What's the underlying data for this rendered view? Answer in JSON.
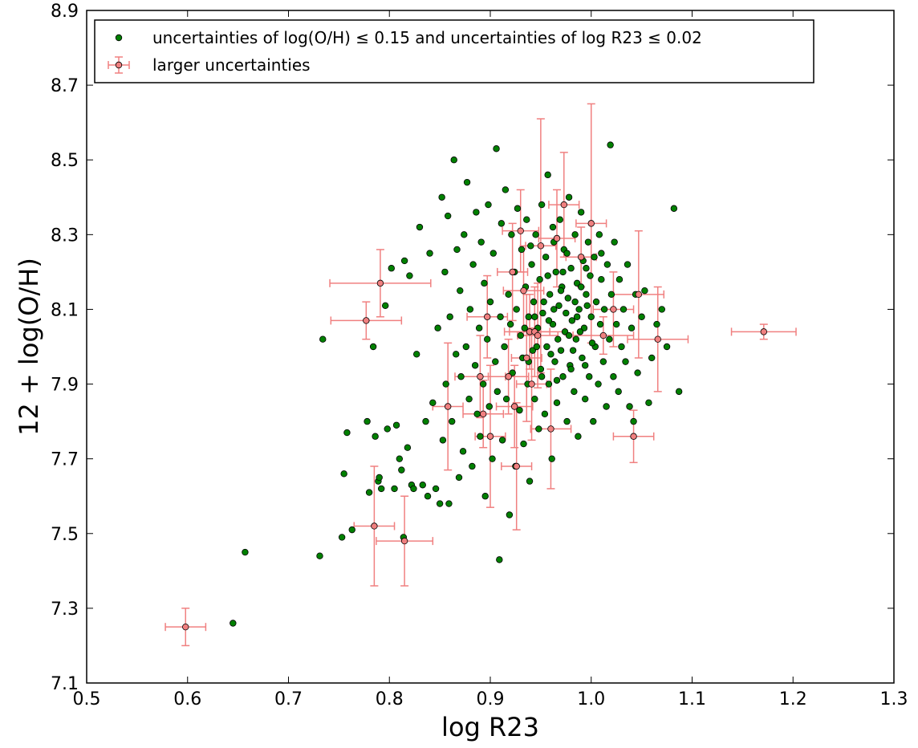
{
  "chart_data": {
    "type": "scatter",
    "title": "",
    "xlabel": "log R23",
    "ylabel": "12 + log(O/H)",
    "xlim": [
      0.5,
      1.3
    ],
    "ylim": [
      7.1,
      8.9
    ],
    "xticks": [
      0.5,
      0.6,
      0.7,
      0.8,
      0.9,
      1.0,
      1.1,
      1.2,
      1.3
    ],
    "yticks": [
      7.1,
      7.3,
      7.5,
      7.7,
      7.9,
      8.1,
      8.3,
      8.5,
      8.7,
      8.9
    ],
    "xtick_labels": [
      "0.5",
      "0.6",
      "0.7",
      "0.8",
      "0.9",
      "1.0",
      "1.1",
      "1.2",
      "1.3"
    ],
    "ytick_labels": [
      "7.1",
      "7.3",
      "7.5",
      "7.7",
      "7.9",
      "8.1",
      "8.3",
      "8.5",
      "8.7",
      "8.9"
    ],
    "grid": false,
    "legend_position": "top-left",
    "series": [
      {
        "name": "uncertainties of log(O/H) ≤ 0.15 and uncertainties of log R23 ≤ 0.02",
        "color": "#008000",
        "marker": "circle",
        "points": [
          [
            0.645,
            7.26
          ],
          [
            0.657,
            7.45
          ],
          [
            0.731,
            7.44
          ],
          [
            0.734,
            8.02
          ],
          [
            0.753,
            7.49
          ],
          [
            0.755,
            7.66
          ],
          [
            0.758,
            7.77
          ],
          [
            0.763,
            7.51
          ],
          [
            0.778,
            7.8
          ],
          [
            0.78,
            7.61
          ],
          [
            0.784,
            8.0
          ],
          [
            0.786,
            7.76
          ],
          [
            0.789,
            7.64
          ],
          [
            0.79,
            7.65
          ],
          [
            0.792,
            7.62
          ],
          [
            0.796,
            8.11
          ],
          [
            0.798,
            7.78
          ],
          [
            0.802,
            8.21
          ],
          [
            0.805,
            7.62
          ],
          [
            0.807,
            7.79
          ],
          [
            0.81,
            7.7
          ],
          [
            0.812,
            7.67
          ],
          [
            0.814,
            7.49
          ],
          [
            0.815,
            8.23
          ],
          [
            0.818,
            7.73
          ],
          [
            0.82,
            8.19
          ],
          [
            0.822,
            7.63
          ],
          [
            0.824,
            7.62
          ],
          [
            0.827,
            7.98
          ],
          [
            0.83,
            8.32
          ],
          [
            0.833,
            7.63
          ],
          [
            0.836,
            7.8
          ],
          [
            0.838,
            7.6
          ],
          [
            0.84,
            8.25
          ],
          [
            0.843,
            7.85
          ],
          [
            0.846,
            7.62
          ],
          [
            0.848,
            8.05
          ],
          [
            0.85,
            7.58
          ],
          [
            0.852,
            8.4
          ],
          [
            0.853,
            7.75
          ],
          [
            0.855,
            8.2
          ],
          [
            0.856,
            7.9
          ],
          [
            0.858,
            8.35
          ],
          [
            0.859,
            7.58
          ],
          [
            0.86,
            8.08
          ],
          [
            0.862,
            7.8
          ],
          [
            0.864,
            8.5
          ],
          [
            0.866,
            7.98
          ],
          [
            0.867,
            8.26
          ],
          [
            0.869,
            7.65
          ],
          [
            0.87,
            8.15
          ],
          [
            0.871,
            7.92
          ],
          [
            0.873,
            7.72
          ],
          [
            0.874,
            8.3
          ],
          [
            0.876,
            8.0
          ],
          [
            0.877,
            8.44
          ],
          [
            0.879,
            7.86
          ],
          [
            0.88,
            8.1
          ],
          [
            0.882,
            7.68
          ],
          [
            0.883,
            8.22
          ],
          [
            0.885,
            7.95
          ],
          [
            0.886,
            8.36
          ],
          [
            0.887,
            7.82
          ],
          [
            0.889,
            8.05
          ],
          [
            0.89,
            7.76
          ],
          [
            0.891,
            8.28
          ],
          [
            0.893,
            7.9
          ],
          [
            0.894,
            8.17
          ],
          [
            0.895,
            7.6
          ],
          [
            0.897,
            8.02
          ],
          [
            0.898,
            8.38
          ],
          [
            0.899,
            7.84
          ],
          [
            0.9,
            8.12
          ],
          [
            0.902,
            7.7
          ],
          [
            0.903,
            8.25
          ],
          [
            0.905,
            7.96
          ],
          [
            0.906,
            8.53
          ],
          [
            0.907,
            7.88
          ],
          [
            0.909,
            7.43
          ],
          [
            0.91,
            8.08
          ],
          [
            0.911,
            8.33
          ],
          [
            0.912,
            7.75
          ],
          [
            0.914,
            8.0
          ],
          [
            0.915,
            8.42
          ],
          [
            0.916,
            7.86
          ],
          [
            0.918,
            8.14
          ],
          [
            0.919,
            7.55
          ],
          [
            0.92,
            8.06
          ],
          [
            0.921,
            8.3
          ],
          [
            0.922,
            7.93
          ],
          [
            0.924,
            8.2
          ],
          [
            0.925,
            7.68
          ],
          [
            0.926,
            8.1
          ],
          [
            0.927,
            8.37
          ],
          [
            0.929,
            7.83
          ],
          [
            0.93,
            8.03
          ],
          [
            0.931,
            8.26
          ],
          [
            0.932,
            7.97
          ],
          [
            0.933,
            7.74
          ],
          [
            0.935,
            8.16
          ],
          [
            0.936,
            8.34
          ],
          [
            0.937,
            7.9
          ],
          [
            0.938,
            8.08
          ],
          [
            0.939,
            7.64
          ],
          [
            0.941,
            8.22
          ],
          [
            0.942,
            7.99
          ],
          [
            0.943,
            8.12
          ],
          [
            0.944,
            7.86
          ],
          [
            0.945,
            8.3
          ],
          [
            0.947,
            8.05
          ],
          [
            0.948,
            7.78
          ],
          [
            0.949,
            8.18
          ],
          [
            0.95,
            7.94
          ],
          [
            0.951,
            8.38
          ],
          [
            0.952,
            8.09
          ],
          [
            0.954,
            7.82
          ],
          [
            0.955,
            8.24
          ],
          [
            0.956,
            8.0
          ],
          [
            0.957,
            8.46
          ],
          [
            0.958,
            7.9
          ],
          [
            0.959,
            8.14
          ],
          [
            0.961,
            7.7
          ],
          [
            0.962,
            8.06
          ],
          [
            0.963,
            8.28
          ],
          [
            0.964,
            7.96
          ],
          [
            0.965,
            8.2
          ],
          [
            0.966,
            7.85
          ],
          [
            0.968,
            8.11
          ],
          [
            0.969,
            8.34
          ],
          [
            0.97,
            7.99
          ],
          [
            0.971,
            8.16
          ],
          [
            0.972,
            7.92
          ],
          [
            0.973,
            8.26
          ],
          [
            0.974,
            8.04
          ],
          [
            0.976,
            7.8
          ],
          [
            0.977,
            8.13
          ],
          [
            0.978,
            8.4
          ],
          [
            0.979,
            7.95
          ],
          [
            0.98,
            8.21
          ],
          [
            0.981,
            8.07
          ],
          [
            0.983,
            7.88
          ],
          [
            0.984,
            8.3
          ],
          [
            0.985,
            8.02
          ],
          [
            0.986,
            8.17
          ],
          [
            0.987,
            7.76
          ],
          [
            0.988,
            8.1
          ],
          [
            0.99,
            8.36
          ],
          [
            0.991,
            7.97
          ],
          [
            0.992,
            8.23
          ],
          [
            0.993,
            8.05
          ],
          [
            0.994,
            7.86
          ],
          [
            0.995,
            8.14
          ],
          [
            0.997,
            8.28
          ],
          [
            0.998,
            7.92
          ],
          [
            0.999,
            8.19
          ],
          [
            1.0,
            8.08
          ],
          [
            1.002,
            7.8
          ],
          [
            1.003,
            8.24
          ],
          [
            1.004,
            8.0
          ],
          [
            1.005,
            8.12
          ],
          [
            1.007,
            7.9
          ],
          [
            1.008,
            8.3
          ],
          [
            1.009,
            8.06
          ],
          [
            1.01,
            8.18
          ],
          [
            1.012,
            7.96
          ],
          [
            1.013,
            8.1
          ],
          [
            1.015,
            7.84
          ],
          [
            1.016,
            8.22
          ],
          [
            1.018,
            8.02
          ],
          [
            1.019,
            8.54
          ],
          [
            1.02,
            8.14
          ],
          [
            1.022,
            7.92
          ],
          [
            1.023,
            8.28
          ],
          [
            1.025,
            8.06
          ],
          [
            1.027,
            7.88
          ],
          [
            1.028,
            8.18
          ],
          [
            1.03,
            8.0
          ],
          [
            1.032,
            8.1
          ],
          [
            1.034,
            7.96
          ],
          [
            1.036,
            8.22
          ],
          [
            1.038,
            7.84
          ],
          [
            1.04,
            8.05
          ],
          [
            1.042,
            7.8
          ],
          [
            1.044,
            8.14
          ],
          [
            1.046,
            7.93
          ],
          [
            1.05,
            8.08
          ],
          [
            1.053,
            8.15
          ],
          [
            1.057,
            7.85
          ],
          [
            1.06,
            7.97
          ],
          [
            1.065,
            8.06
          ],
          [
            1.07,
            8.1
          ],
          [
            1.075,
            8.0
          ],
          [
            1.082,
            8.37
          ],
          [
            1.087,
            7.88
          ],
          [
            0.934,
            8.05
          ],
          [
            0.946,
            8.0
          ],
          [
            0.958,
            8.07
          ],
          [
            0.967,
            8.02
          ],
          [
            0.975,
            8.09
          ],
          [
            0.982,
            7.99
          ],
          [
            0.989,
            8.04
          ],
          [
            0.996,
            8.11
          ],
          [
            0.953,
            8.12
          ],
          [
            0.96,
            7.98
          ],
          [
            0.97,
            8.15
          ],
          [
            0.978,
            8.03
          ],
          [
            0.986,
            8.08
          ],
          [
            0.994,
            7.95
          ],
          [
            0.944,
            8.08
          ],
          [
            0.951,
            7.92
          ],
          [
            0.963,
            8.1
          ],
          [
            0.972,
            8.2
          ],
          [
            0.98,
            7.94
          ],
          [
            0.99,
            8.16
          ],
          [
            0.938,
            7.96
          ],
          [
            0.957,
            8.19
          ],
          [
            0.966,
            7.91
          ],
          [
            0.984,
            8.12
          ],
          [
            1.001,
            8.01
          ],
          [
            0.94,
            8.27
          ],
          [
            0.962,
            8.32
          ],
          [
            0.976,
            8.25
          ],
          [
            0.995,
            8.21
          ],
          [
            1.01,
            8.25
          ]
        ]
      },
      {
        "name": "larger uncertainties",
        "color": "#f08080",
        "marker": "circle-errorbar",
        "points": [
          {
            "x": 0.598,
            "y": 7.25,
            "xerr": 0.02,
            "yerr": 0.05
          },
          {
            "x": 0.777,
            "y": 8.07,
            "xerr": 0.035,
            "yerr": 0.05
          },
          {
            "x": 0.791,
            "y": 8.17,
            "xerr": 0.05,
            "yerr": 0.09
          },
          {
            "x": 0.785,
            "y": 7.52,
            "xerr": 0.02,
            "yerr": 0.16
          },
          {
            "x": 0.815,
            "y": 7.48,
            "xerr": 0.028,
            "yerr": 0.12
          },
          {
            "x": 0.858,
            "y": 7.84,
            "xerr": 0.015,
            "yerr": 0.17
          },
          {
            "x": 0.89,
            "y": 7.92,
            "xerr": 0.025,
            "yerr": 0.11
          },
          {
            "x": 0.893,
            "y": 7.82,
            "xerr": 0.02,
            "yerr": 0.09
          },
          {
            "x": 0.897,
            "y": 8.08,
            "xerr": 0.02,
            "yerr": 0.11
          },
          {
            "x": 0.9,
            "y": 7.76,
            "xerr": 0.015,
            "yerr": 0.19
          },
          {
            "x": 0.918,
            "y": 7.92,
            "xerr": 0.02,
            "yerr": 0.1
          },
          {
            "x": 0.922,
            "y": 8.2,
            "xerr": 0.015,
            "yerr": 0.13
          },
          {
            "x": 0.924,
            "y": 7.84,
            "xerr": 0.018,
            "yerr": 0.11
          },
          {
            "x": 0.926,
            "y": 7.68,
            "xerr": 0.015,
            "yerr": 0.17
          },
          {
            "x": 0.93,
            "y": 8.31,
            "xerr": 0.018,
            "yerr": 0.11
          },
          {
            "x": 0.933,
            "y": 8.15,
            "xerr": 0.02,
            "yerr": 0.12
          },
          {
            "x": 0.936,
            "y": 7.97,
            "xerr": 0.015,
            "yerr": 0.17
          },
          {
            "x": 0.939,
            "y": 8.04,
            "xerr": 0.02,
            "yerr": 0.1
          },
          {
            "x": 0.941,
            "y": 7.9,
            "xerr": 0.015,
            "yerr": 0.15
          },
          {
            "x": 0.944,
            "y": 8.04,
            "xerr": 0.03,
            "yerr": 0.12
          },
          {
            "x": 0.947,
            "y": 8.03,
            "xerr": 0.02,
            "yerr": 0.14
          },
          {
            "x": 0.95,
            "y": 8.27,
            "xerr": 0.015,
            "yerr": 0.34
          },
          {
            "x": 0.96,
            "y": 7.78,
            "xerr": 0.02,
            "yerr": 0.16
          },
          {
            "x": 0.966,
            "y": 8.29,
            "xerr": 0.018,
            "yerr": 0.13
          },
          {
            "x": 0.973,
            "y": 8.38,
            "xerr": 0.015,
            "yerr": 0.14
          },
          {
            "x": 0.99,
            "y": 8.24,
            "xerr": 0.015,
            "yerr": 0.08
          },
          {
            "x": 1.0,
            "y": 8.33,
            "xerr": 0.015,
            "yerr": 0.32
          },
          {
            "x": 1.012,
            "y": 8.03,
            "xerr": 0.03,
            "yerr": 0.05
          },
          {
            "x": 1.022,
            "y": 8.1,
            "xerr": 0.02,
            "yerr": 0.1
          },
          {
            "x": 1.042,
            "y": 7.76,
            "xerr": 0.02,
            "yerr": 0.07
          },
          {
            "x": 1.047,
            "y": 8.14,
            "xerr": 0.025,
            "yerr": 0.17
          },
          {
            "x": 1.066,
            "y": 8.02,
            "xerr": 0.03,
            "yerr": 0.14
          },
          {
            "x": 1.171,
            "y": 8.04,
            "xerr": 0.032,
            "yerr": 0.02
          }
        ]
      }
    ]
  }
}
